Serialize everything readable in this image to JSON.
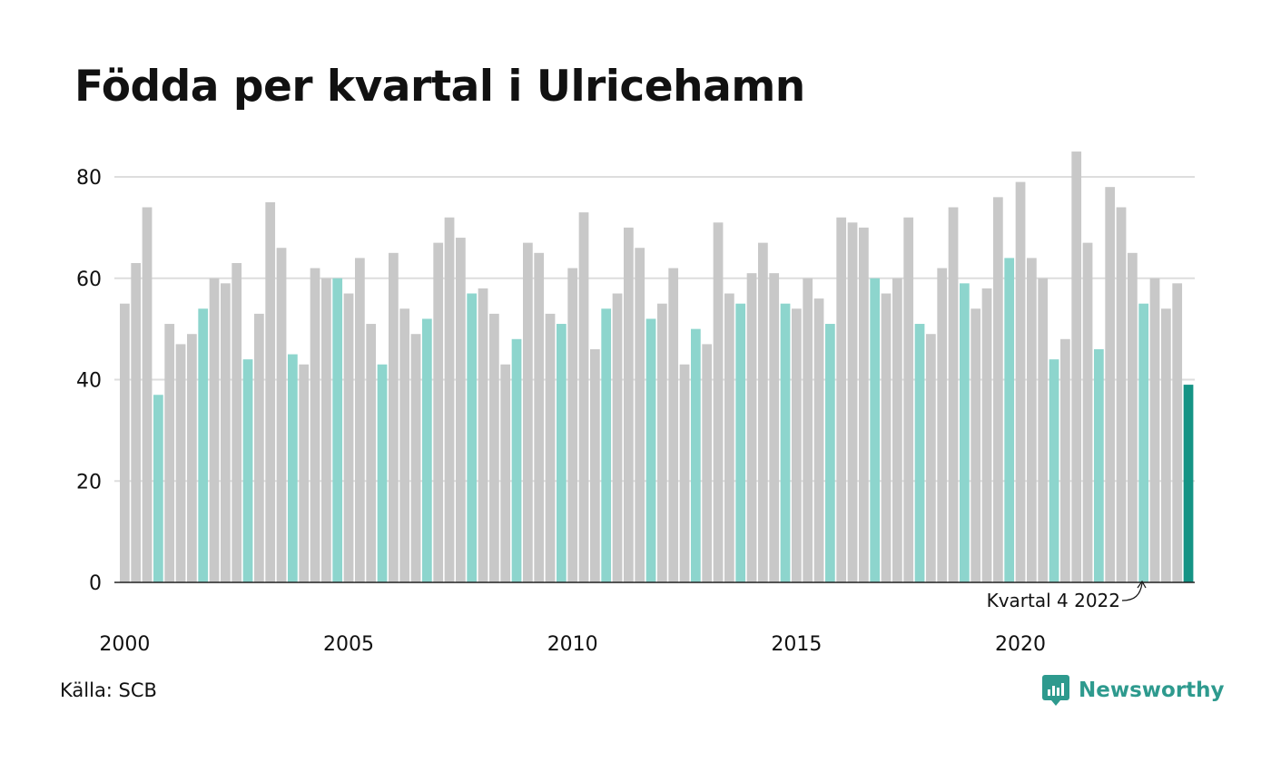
{
  "title": "Födda per kvartal i Ulricehamn",
  "source": "Källa: SCB",
  "brand": "Newsworthy",
  "colors": {
    "bar_default": "#c8c8c8",
    "bar_q4": "#8dd5cd",
    "bar_latest": "#159485",
    "gridline": "#dddddd",
    "axis": "#222222",
    "brand": "#2e9a8e"
  },
  "chart_data": {
    "type": "bar",
    "title": "Födda per kvartal i Ulricehamn",
    "xlabel": "",
    "ylabel": "",
    "ylim": [
      0,
      85
    ],
    "yticks": [
      0,
      20,
      40,
      60,
      80
    ],
    "xtick_labels": [
      "2000",
      "2005",
      "2010",
      "2015",
      "2020"
    ],
    "grid": true,
    "annotation": "Kvartal 4 2022",
    "categories": [
      "2000 Q1",
      "2000 Q2",
      "2000 Q3",
      "2000 Q4",
      "2001 Q1",
      "2001 Q2",
      "2001 Q3",
      "2001 Q4",
      "2002 Q1",
      "2002 Q2",
      "2002 Q3",
      "2002 Q4",
      "2003 Q1",
      "2003 Q2",
      "2003 Q3",
      "2003 Q4",
      "2004 Q1",
      "2004 Q2",
      "2004 Q3",
      "2004 Q4",
      "2005 Q1",
      "2005 Q2",
      "2005 Q3",
      "2005 Q4",
      "2006 Q1",
      "2006 Q2",
      "2006 Q3",
      "2006 Q4",
      "2007 Q1",
      "2007 Q2",
      "2007 Q3",
      "2007 Q4",
      "2008 Q1",
      "2008 Q2",
      "2008 Q3",
      "2008 Q4",
      "2009 Q1",
      "2009 Q2",
      "2009 Q3",
      "2009 Q4",
      "2010 Q1",
      "2010 Q2",
      "2010 Q3",
      "2010 Q4",
      "2011 Q1",
      "2011 Q2",
      "2011 Q3",
      "2011 Q4",
      "2012 Q1",
      "2012 Q2",
      "2012 Q3",
      "2012 Q4",
      "2013 Q1",
      "2013 Q2",
      "2013 Q3",
      "2013 Q4",
      "2014 Q1",
      "2014 Q2",
      "2014 Q3",
      "2014 Q4",
      "2015 Q1",
      "2015 Q2",
      "2015 Q3",
      "2015 Q4",
      "2016 Q1",
      "2016 Q2",
      "2016 Q3",
      "2016 Q4",
      "2017 Q1",
      "2017 Q2",
      "2017 Q3",
      "2017 Q4",
      "2018 Q1",
      "2018 Q2",
      "2018 Q3",
      "2018 Q4",
      "2019 Q1",
      "2019 Q2",
      "2019 Q3",
      "2019 Q4",
      "2020 Q1",
      "2020 Q2",
      "2020 Q3",
      "2020 Q4",
      "2021 Q1",
      "2021 Q2",
      "2021 Q3",
      "2021 Q4",
      "2022 Q1",
      "2022 Q2",
      "2022 Q3",
      "2022 Q4",
      "2023 Q1",
      "2023 Q2",
      "2023 Q3",
      "2023 Q4"
    ],
    "values": [
      55,
      63,
      74,
      37,
      51,
      47,
      49,
      54,
      60,
      59,
      63,
      44,
      53,
      75,
      66,
      45,
      43,
      62,
      60,
      60,
      57,
      64,
      51,
      43,
      65,
      54,
      49,
      52,
      67,
      72,
      68,
      57,
      58,
      53,
      43,
      48,
      67,
      65,
      53,
      51,
      62,
      73,
      46,
      54,
      57,
      70,
      66,
      52,
      55,
      62,
      43,
      50,
      47,
      71,
      57,
      55,
      61,
      67,
      61,
      55,
      54,
      60,
      56,
      51,
      72,
      71,
      70,
      60,
      57,
      60,
      72,
      51,
      49,
      62,
      74,
      59,
      54,
      58,
      76,
      64,
      79,
      64,
      60,
      44,
      48,
      85,
      67,
      46,
      78,
      74,
      65,
      55,
      60,
      54,
      59,
      39
    ]
  }
}
